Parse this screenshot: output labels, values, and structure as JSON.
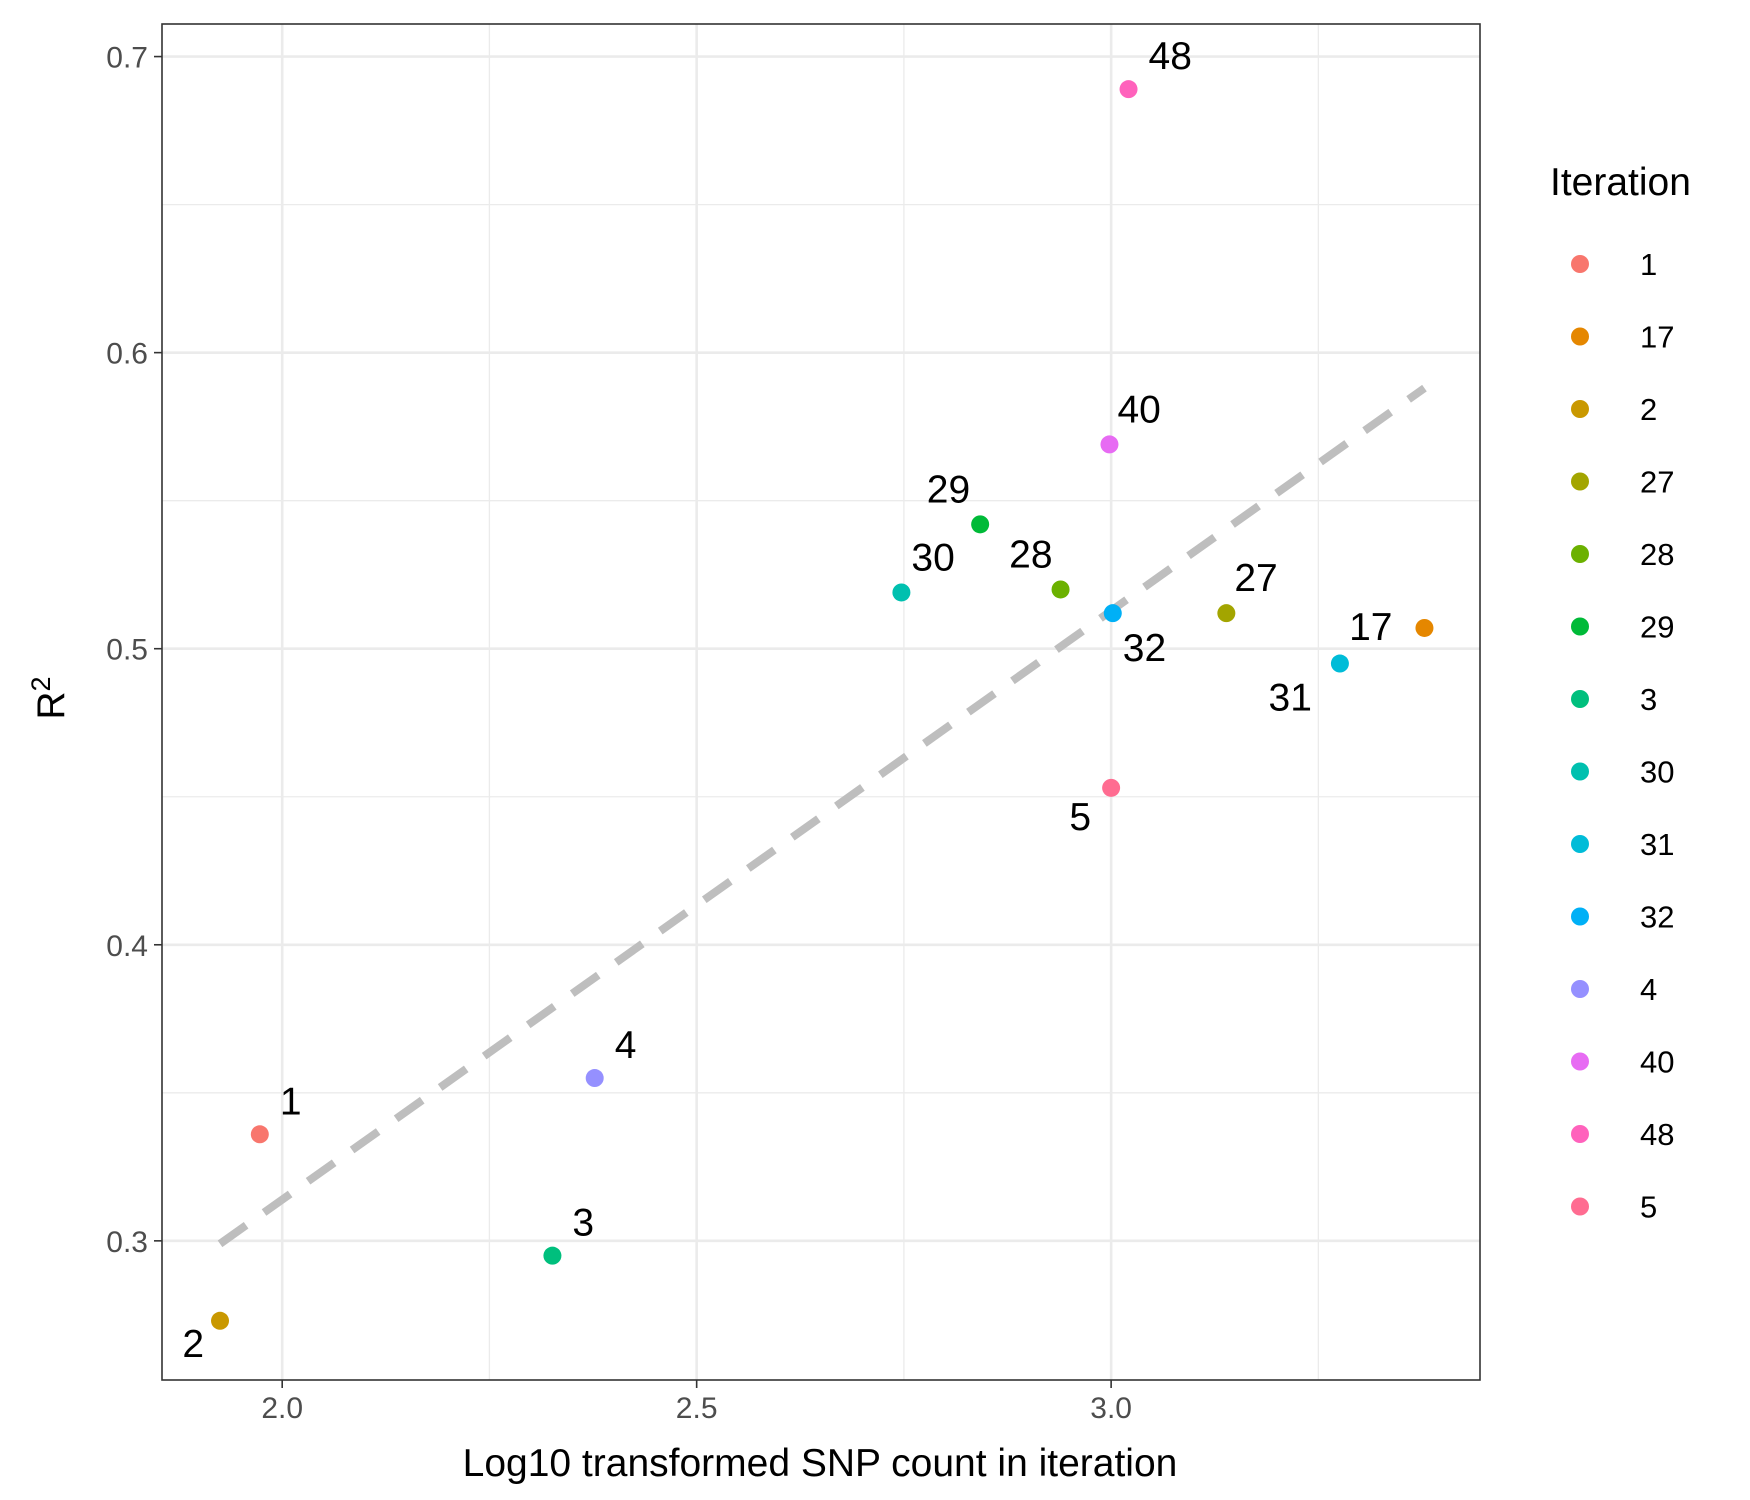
{
  "chart_data": {
    "type": "scatter",
    "title": "",
    "xlabel": "Log10 transformed SNP count in iteration",
    "ylabel": "R",
    "ylabel_superscript": "2",
    "xlim": [
      1.855,
      3.445
    ],
    "ylim": [
      0.253,
      0.711
    ],
    "x_ticks": [
      2.0,
      2.5,
      3.0
    ],
    "x_tick_labels": [
      "2.0",
      "2.5",
      "3.0"
    ],
    "y_ticks": [
      0.3,
      0.4,
      0.5,
      0.6,
      0.7
    ],
    "y_tick_labels": [
      "0.3",
      "0.4",
      "0.5",
      "0.6",
      "0.7"
    ],
    "grid": true,
    "legend": {
      "title": "Iteration",
      "position": "right",
      "entries": [
        "1",
        "17",
        "2",
        "27",
        "28",
        "29",
        "3",
        "30",
        "31",
        "32",
        "4",
        "40",
        "48",
        "5"
      ]
    },
    "colors": {
      "1": "#F8766D",
      "17": "#E58700",
      "2": "#C99800",
      "27": "#A3A500",
      "28": "#6BB100",
      "29": "#00BA38",
      "3": "#00BF7D",
      "30": "#00C0AF",
      "31": "#00BCD8",
      "32": "#00B0F6",
      "4": "#9590FF",
      "40": "#E76BF3",
      "48": "#FF62BC",
      "5": "#FF6C91"
    },
    "points": [
      {
        "iteration": "1",
        "x": 1.973,
        "y": 0.336
      },
      {
        "iteration": "2",
        "x": 1.925,
        "y": 0.273
      },
      {
        "iteration": "3",
        "x": 2.326,
        "y": 0.295
      },
      {
        "iteration": "4",
        "x": 2.377,
        "y": 0.355
      },
      {
        "iteration": "5",
        "x": 3.0,
        "y": 0.453
      },
      {
        "iteration": "17",
        "x": 3.378,
        "y": 0.507
      },
      {
        "iteration": "27",
        "x": 3.139,
        "y": 0.512
      },
      {
        "iteration": "28",
        "x": 2.939,
        "y": 0.52
      },
      {
        "iteration": "29",
        "x": 2.842,
        "y": 0.542
      },
      {
        "iteration": "30",
        "x": 2.747,
        "y": 0.519
      },
      {
        "iteration": "31",
        "x": 3.276,
        "y": 0.495
      },
      {
        "iteration": "32",
        "x": 3.002,
        "y": 0.512
      },
      {
        "iteration": "40",
        "x": 2.998,
        "y": 0.569
      },
      {
        "iteration": "48",
        "x": 3.021,
        "y": 0.689
      }
    ],
    "trend_line": {
      "style": "dashed",
      "color": "#BEBEBE",
      "x": [
        1.925,
        3.378
      ],
      "y": [
        0.299,
        0.588
      ]
    }
  }
}
